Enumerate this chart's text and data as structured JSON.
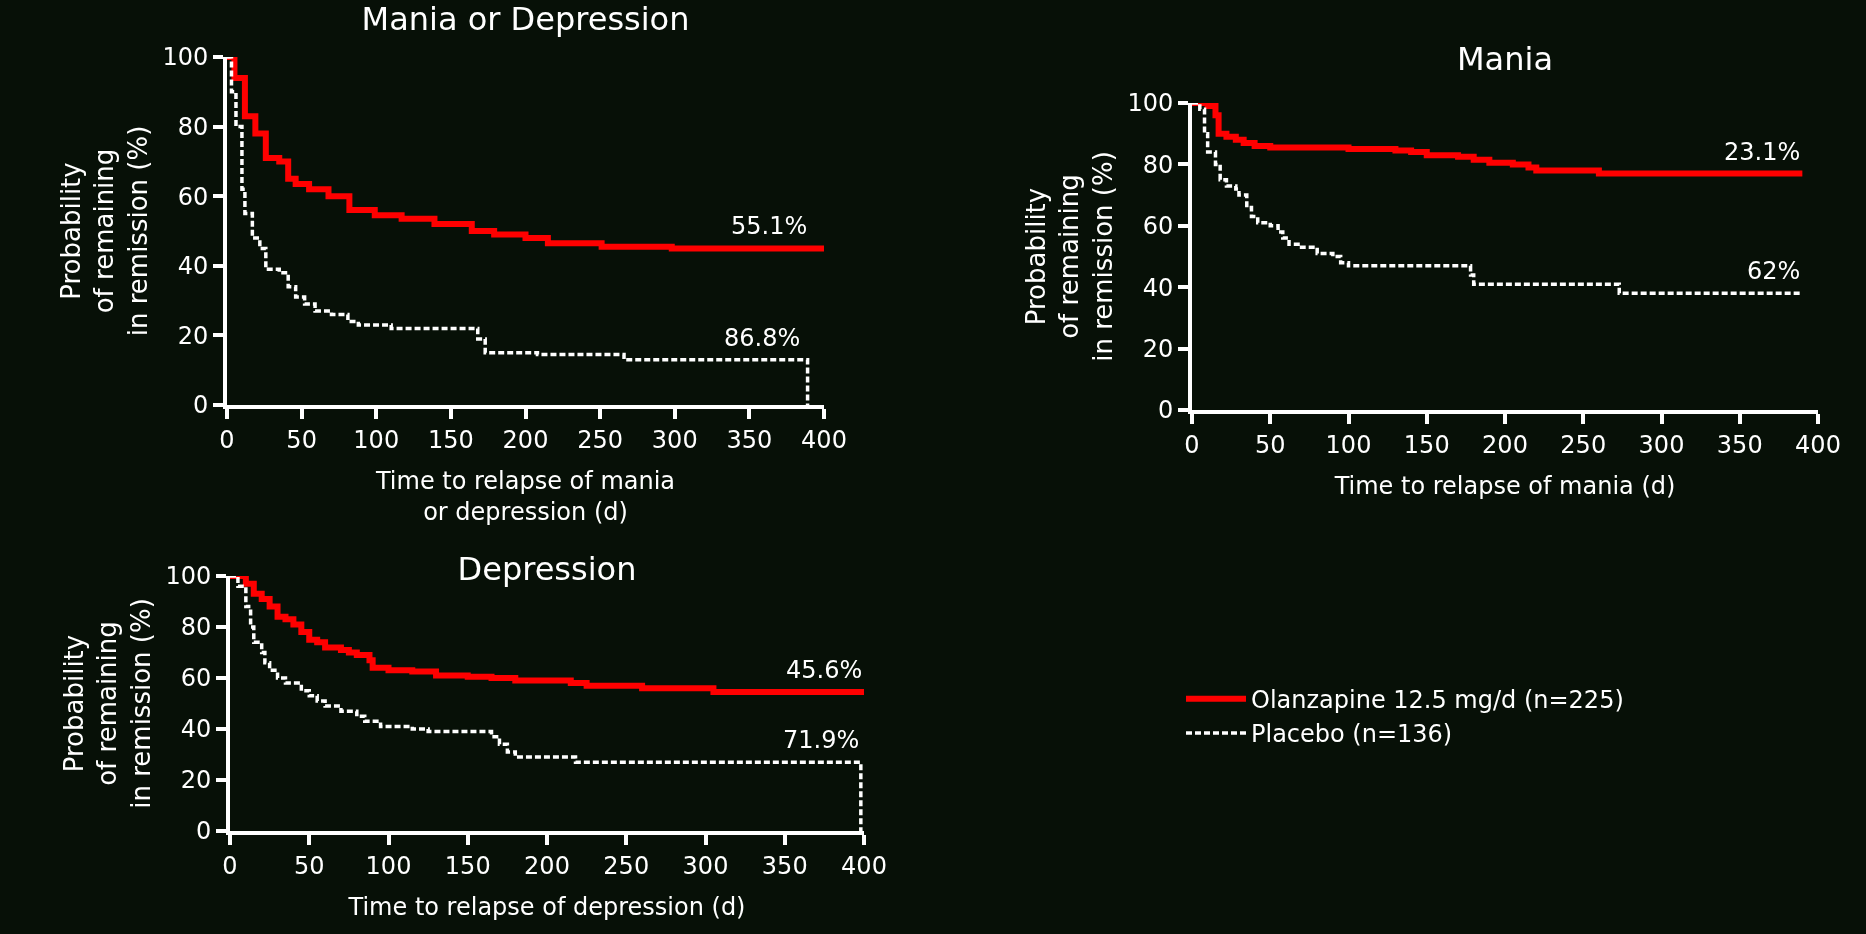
{
  "chart_data": [
    {
      "type": "step",
      "title": "Mania or Depression",
      "xlabel": "Time to relapse of mania\nor depression (d)",
      "ylabel": "Probability\nof remaining\nin remission (%)",
      "xlim": [
        0,
        400
      ],
      "ylim": [
        0,
        100
      ],
      "xticks": [
        0,
        50,
        100,
        150,
        200,
        250,
        300,
        350,
        400
      ],
      "yticks": [
        0,
        20,
        40,
        60,
        80,
        100
      ],
      "grid": false,
      "legend": false,
      "marker": "none",
      "series": [
        {
          "color": "#ff0000",
          "line_style": "solid",
          "x": [
            0,
            5,
            12,
            19,
            26,
            35,
            41,
            46,
            55,
            68,
            82,
            99,
            117,
            139,
            164,
            179,
            200,
            215,
            251,
            298,
            400
          ],
          "values": [
            100,
            94,
            83,
            78,
            71,
            70,
            65,
            63.5,
            62,
            60,
            56,
            54.5,
            53.5,
            52,
            50,
            49,
            48,
            46.5,
            45.5,
            45,
            45
          ]
        },
        {
          "color": "#ffffff",
          "line_style": "dotted",
          "x": [
            0,
            3,
            6,
            10,
            12,
            17,
            22,
            26,
            35,
            41,
            46,
            52,
            59,
            70,
            81,
            88,
            110,
            160,
            168,
            173,
            208,
            266,
            389,
            389
          ],
          "values": [
            100,
            90,
            80,
            62,
            55,
            48,
            45,
            39,
            38,
            34,
            31,
            29,
            27,
            26,
            24,
            23,
            22,
            22,
            19,
            15,
            14.5,
            13,
            13,
            0
          ]
        }
      ],
      "annotations": [
        {
          "text": "55.1%",
          "x": 390,
          "y": 45
        },
        {
          "text": "86.8%",
          "x": 385,
          "y": 13
        }
      ]
    },
    {
      "type": "step",
      "title": "Mania",
      "xlabel": "Time to relapse of mania (d)",
      "ylabel": "Probability\nof remaining\nin remission (%)",
      "xlim": [
        0,
        400
      ],
      "ylim": [
        0,
        100
      ],
      "xticks": [
        0,
        50,
        100,
        150,
        200,
        250,
        300,
        350,
        400
      ],
      "yticks": [
        0,
        20,
        40,
        60,
        80,
        100
      ],
      "grid": false,
      "legend": false,
      "marker": "none",
      "series": [
        {
          "color": "#ff0000",
          "line_style": "solid",
          "x": [
            0,
            10,
            15,
            17,
            22,
            28,
            33,
            40,
            50,
            100,
            130,
            140,
            150,
            170,
            180,
            190,
            205,
            215,
            220,
            260,
            390
          ],
          "values": [
            100,
            99,
            96,
            90,
            89,
            88,
            87,
            86,
            85.5,
            85,
            84.5,
            84,
            83,
            82.5,
            81.5,
            80.5,
            80,
            79,
            78,
            77,
            77
          ]
        },
        {
          "color": "#ffffff",
          "line_style": "dotted",
          "x": [
            0,
            5,
            8,
            10,
            15,
            18,
            22,
            28,
            30,
            35,
            38,
            42,
            50,
            55,
            58,
            62,
            70,
            80,
            90,
            95,
            100,
            175,
            178,
            180,
            270,
            273,
            390
          ],
          "values": [
            100,
            98,
            90,
            84,
            80,
            75,
            73,
            72,
            70,
            66,
            63,
            61,
            60,
            58,
            56,
            54,
            53,
            51,
            50,
            48,
            47,
            47,
            44,
            41,
            41,
            38,
            38
          ]
        }
      ],
      "annotations": [
        {
          "text": "23.1%",
          "x": 390,
          "y": 77
        },
        {
          "text": "62%",
          "x": 390,
          "y": 38
        }
      ]
    },
    {
      "type": "step",
      "title": "Depression",
      "xlabel": "Time to relapse of depression (d)",
      "ylabel": "Probability\nof remaining\nin remission (%)",
      "xlim": [
        0,
        400
      ],
      "ylim": [
        0,
        100
      ],
      "xticks": [
        0,
        50,
        100,
        150,
        200,
        250,
        300,
        350,
        400
      ],
      "yticks": [
        0,
        20,
        40,
        60,
        80,
        100
      ],
      "grid": false,
      "legend": "right",
      "marker": "none",
      "series": [
        {
          "name": "Olanzapine 12.5 mg/d (n=225)",
          "color": "#ff0000",
          "line_style": "solid",
          "x": [
            0,
            5,
            10,
            15,
            20,
            25,
            30,
            35,
            40,
            45,
            50,
            55,
            60,
            70,
            75,
            80,
            88,
            90,
            100,
            115,
            130,
            150,
            165,
            180,
            205,
            215,
            225,
            260,
            305,
            400
          ],
          "values": [
            100,
            100,
            97,
            93,
            91,
            88,
            84,
            83,
            81,
            78,
            75,
            74,
            72,
            71,
            70,
            69,
            67,
            64,
            63,
            62.5,
            61,
            60.5,
            60,
            59,
            59,
            58,
            57,
            56,
            54.5,
            54.5
          ]
        },
        {
          "name": "Placebo (n=136)",
          "color": "#ffffff",
          "line_style": "dotted",
          "x": [
            0,
            5,
            10,
            13,
            15,
            20,
            22,
            25,
            30,
            35,
            45,
            50,
            55,
            60,
            70,
            80,
            85,
            95,
            115,
            125,
            160,
            165,
            170,
            175,
            180,
            215,
            218,
            398,
            398
          ],
          "values": [
            100,
            96,
            88,
            80,
            74,
            70,
            66,
            63,
            60,
            58,
            55,
            53,
            51,
            49,
            47,
            45,
            43,
            41,
            40,
            39,
            39,
            37,
            34,
            31,
            29,
            29,
            27,
            27,
            0
          ]
        }
      ],
      "annotations": [
        {
          "text": "45.6%",
          "x": 400,
          "y": 54.5
        },
        {
          "text": "71.9%",
          "x": 398,
          "y": 27
        }
      ]
    }
  ]
}
